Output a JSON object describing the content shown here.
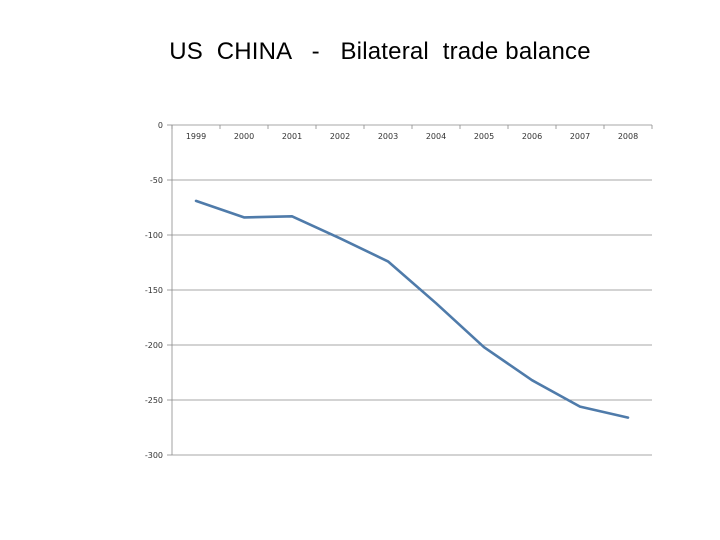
{
  "slide": {
    "title": "US  CHINA   -   Bilateral  trade balance"
  },
  "chart_data": {
    "type": "line",
    "title": "US  CHINA   -   Bilateral  trade balance",
    "xlabel": "",
    "ylabel": "",
    "categories": [
      "1999",
      "2000",
      "2001",
      "2002",
      "2003",
      "2004",
      "2005",
      "2006",
      "2007",
      "2008"
    ],
    "series": [
      {
        "values": [
          -69,
          -84,
          -83,
          -103,
          -124,
          -162,
          -202,
          -232,
          -256,
          -266
        ],
        "color": "#4F7BAA"
      }
    ],
    "ylim": [
      -300,
      0
    ],
    "yticks": [
      0,
      -50,
      -100,
      -150,
      -200,
      -250,
      -300
    ],
    "grid": true,
    "x_axis_position": "top",
    "legend": "none"
  }
}
